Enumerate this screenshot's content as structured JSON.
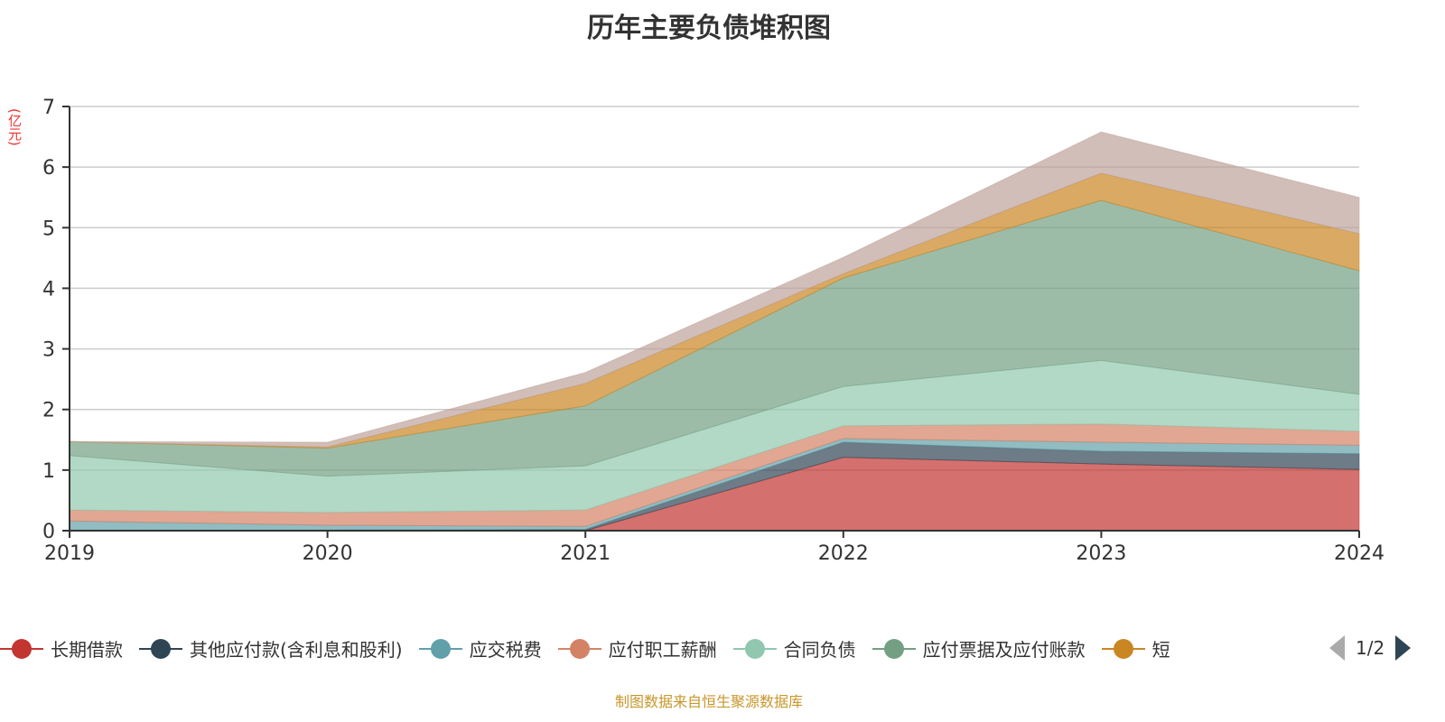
{
  "chart_data": {
    "type": "area",
    "stacked": true,
    "title": "历年主要负债堆积图",
    "ylabel": "(亿元)",
    "ylim": [
      0,
      7
    ],
    "yticks": [
      "0",
      "1",
      "2",
      "3",
      "4",
      "5",
      "6",
      "7"
    ],
    "categories": [
      "2019",
      "2020",
      "2021",
      "2022",
      "2023",
      "2024"
    ],
    "grid": true,
    "legend_placement": "bottom",
    "series": [
      {
        "name": "长期借款",
        "color": "#c23531",
        "values": [
          0,
          0,
          0,
          1.21,
          1.1,
          1.01
        ]
      },
      {
        "name": "其他应付款(含利息和股利)",
        "color": "#2f4554",
        "values": [
          0.01,
          0.01,
          0.02,
          0.25,
          0.21,
          0.26
        ]
      },
      {
        "name": "应交税费",
        "color": "#61a0a8",
        "values": [
          0.15,
          0.08,
          0.05,
          0.06,
          0.15,
          0.14
        ]
      },
      {
        "name": "应付职工薪酬",
        "color": "#d48265",
        "values": [
          0.18,
          0.21,
          0.27,
          0.21,
          0.3,
          0.23
        ]
      },
      {
        "name": "合同负债",
        "color": "#91c7ae",
        "values": [
          0.9,
          0.6,
          0.73,
          0.65,
          1.05,
          0.61
        ]
      },
      {
        "name": "应付票据及应付账款",
        "color": "#749f83",
        "values": [
          0.23,
          0.46,
          0.99,
          1.79,
          2.64,
          2.04
        ]
      },
      {
        "name": "短",
        "color": "#ca8622",
        "values": [
          0,
          0.02,
          0.37,
          0.07,
          0.45,
          0.61
        ]
      },
      {
        "color": "#bda29a",
        "values": [
          0,
          0.08,
          0.18,
          0.27,
          0.68,
          0.6
        ]
      }
    ]
  },
  "legend": {
    "page": "1/2"
  },
  "source": "制图数据来自恒生聚源数据库"
}
